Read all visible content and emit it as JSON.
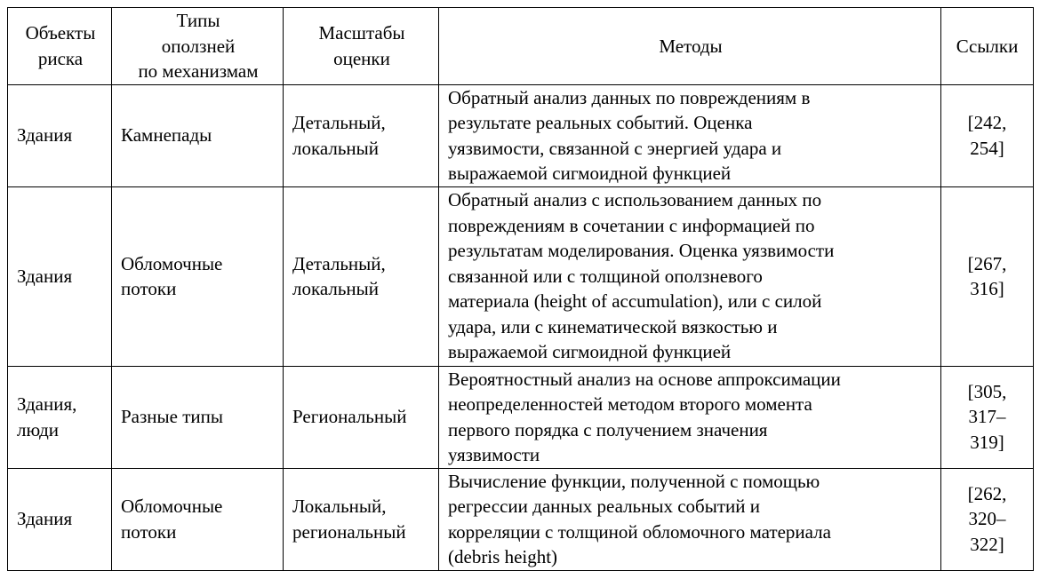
{
  "table": {
    "header": [
      [
        "Объекты",
        "риска"
      ],
      [
        "Типы",
        "оползней",
        "по механизмам"
      ],
      [
        "Масштабы",
        "оценки"
      ],
      [
        "Методы"
      ],
      [
        "Ссылки"
      ]
    ],
    "rows": [
      [
        [
          "Здания"
        ],
        [
          "Камнепады"
        ],
        [
          "Детальный,",
          "локальный"
        ],
        [
          "Обратный анализ данных по повреждениям в",
          "результате реальных событий. Оценка",
          "уязвимости, связанной с энергией удара и",
          "выражаемой сигмоидной функцией"
        ],
        [
          "[242,",
          "254]"
        ]
      ],
      [
        [
          "Здания"
        ],
        [
          "Обломочные",
          "потоки"
        ],
        [
          "Детальный,",
          "локальный"
        ],
        [
          "Обратный анализ с использованием данных по",
          "повреждениям в сочетании с информацией по",
          "результатам моделирования. Оценка уязвимости",
          "связанной или с толщиной оползневого",
          "материала (height of accumulation), или с силой",
          "удара, или с кинематической вязкостью и",
          "выражаемой сигмоидной функцией"
        ],
        [
          "[267,",
          "316]"
        ]
      ],
      [
        [
          "Здания,",
          "люди"
        ],
        [
          "Разные типы"
        ],
        [
          "Региональный"
        ],
        [
          "Вероятностный анализ на основе аппроксимации",
          "неопределенностей методом второго момента",
          "первого порядка с получением значения",
          "уязвимости"
        ],
        [
          "[305,",
          "317–",
          "319]"
        ]
      ],
      [
        [
          "Здания"
        ],
        [
          "Обломочные",
          "потоки"
        ],
        [
          "Локальный,",
          "региональный"
        ],
        [
          "Вычисление функции, полученной с помощью",
          "регрессии данных реальных событий и",
          "корреляции с толщиной обломочного материала",
          "(debris height)"
        ],
        [
          "[262,",
          "320–",
          "322]"
        ]
      ]
    ]
  }
}
